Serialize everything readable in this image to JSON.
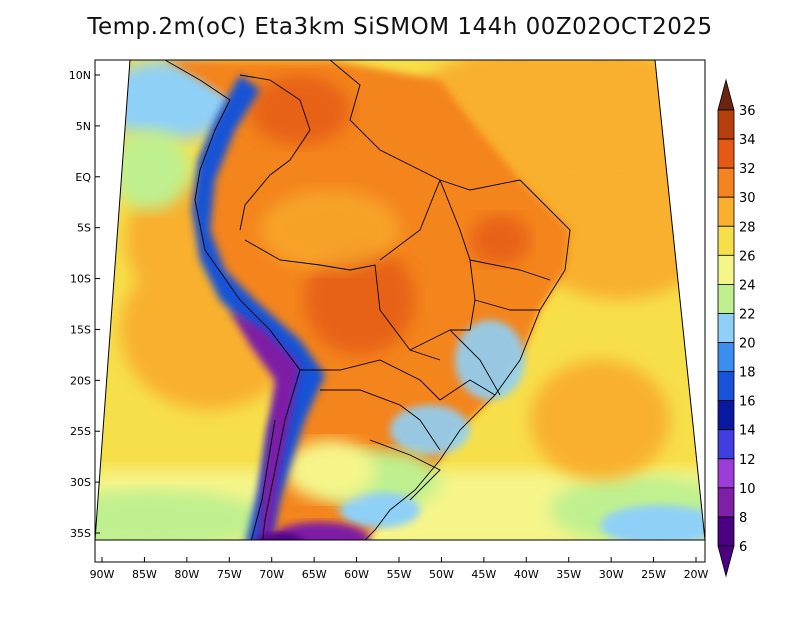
{
  "title": "Temp.2m(oC) Eta3km SiSMOM 144h 00Z02OCT2025",
  "map": {
    "lon_min": -90,
    "lon_max": -20,
    "lat_min": -38,
    "lat_max": 12,
    "lat_ticks": [
      {
        "value": 10,
        "label": "10N"
      },
      {
        "value": 5,
        "label": "5N"
      },
      {
        "value": 0,
        "label": "EQ"
      },
      {
        "value": -5,
        "label": "5S"
      },
      {
        "value": -10,
        "label": "10S"
      },
      {
        "value": -15,
        "label": "15S"
      },
      {
        "value": -20,
        "label": "20S"
      },
      {
        "value": -25,
        "label": "25S"
      },
      {
        "value": -30,
        "label": "30S"
      },
      {
        "value": -35,
        "label": "35S"
      }
    ],
    "lon_ticks": [
      {
        "value": -90,
        "label": "90W"
      },
      {
        "value": -85,
        "label": "85W"
      },
      {
        "value": -80,
        "label": "80W"
      },
      {
        "value": -75,
        "label": "75W"
      },
      {
        "value": -70,
        "label": "70W"
      },
      {
        "value": -65,
        "label": "65W"
      },
      {
        "value": -60,
        "label": "60W"
      },
      {
        "value": -55,
        "label": "55W"
      },
      {
        "value": -50,
        "label": "50W"
      },
      {
        "value": -45,
        "label": "45W"
      },
      {
        "value": -40,
        "label": "40W"
      },
      {
        "value": -35,
        "label": "35W"
      },
      {
        "value": -30,
        "label": "30W"
      },
      {
        "value": -25,
        "label": "25W"
      },
      {
        "value": -20,
        "label": "20W"
      }
    ]
  },
  "colorbar": {
    "units": "oC",
    "levels": [
      {
        "label": "6",
        "color": "#4b0082"
      },
      {
        "label": "8",
        "color": "#7e1fa6"
      },
      {
        "label": "10",
        "color": "#9b3dd6"
      },
      {
        "label": "12",
        "color": "#3f3fe0"
      },
      {
        "label": "14",
        "color": "#0a1aa0"
      },
      {
        "label": "16",
        "color": "#1852d6"
      },
      {
        "label": "18",
        "color": "#3a8ef0"
      },
      {
        "label": "20",
        "color": "#8fd0f7"
      },
      {
        "label": "22",
        "color": "#bff08f"
      },
      {
        "label": "24",
        "color": "#f5f58a"
      },
      {
        "label": "26",
        "color": "#f7df4a"
      },
      {
        "label": "28",
        "color": "#f8b02e"
      },
      {
        "label": "30",
        "color": "#f4841f"
      },
      {
        "label": "32",
        "color": "#e45a14"
      },
      {
        "label": "34",
        "color": "#b5400d"
      },
      {
        "label": "36",
        "color": "#7a2a0a"
      }
    ],
    "low_color": "#4b0082",
    "high_color": "#6b2410"
  }
}
